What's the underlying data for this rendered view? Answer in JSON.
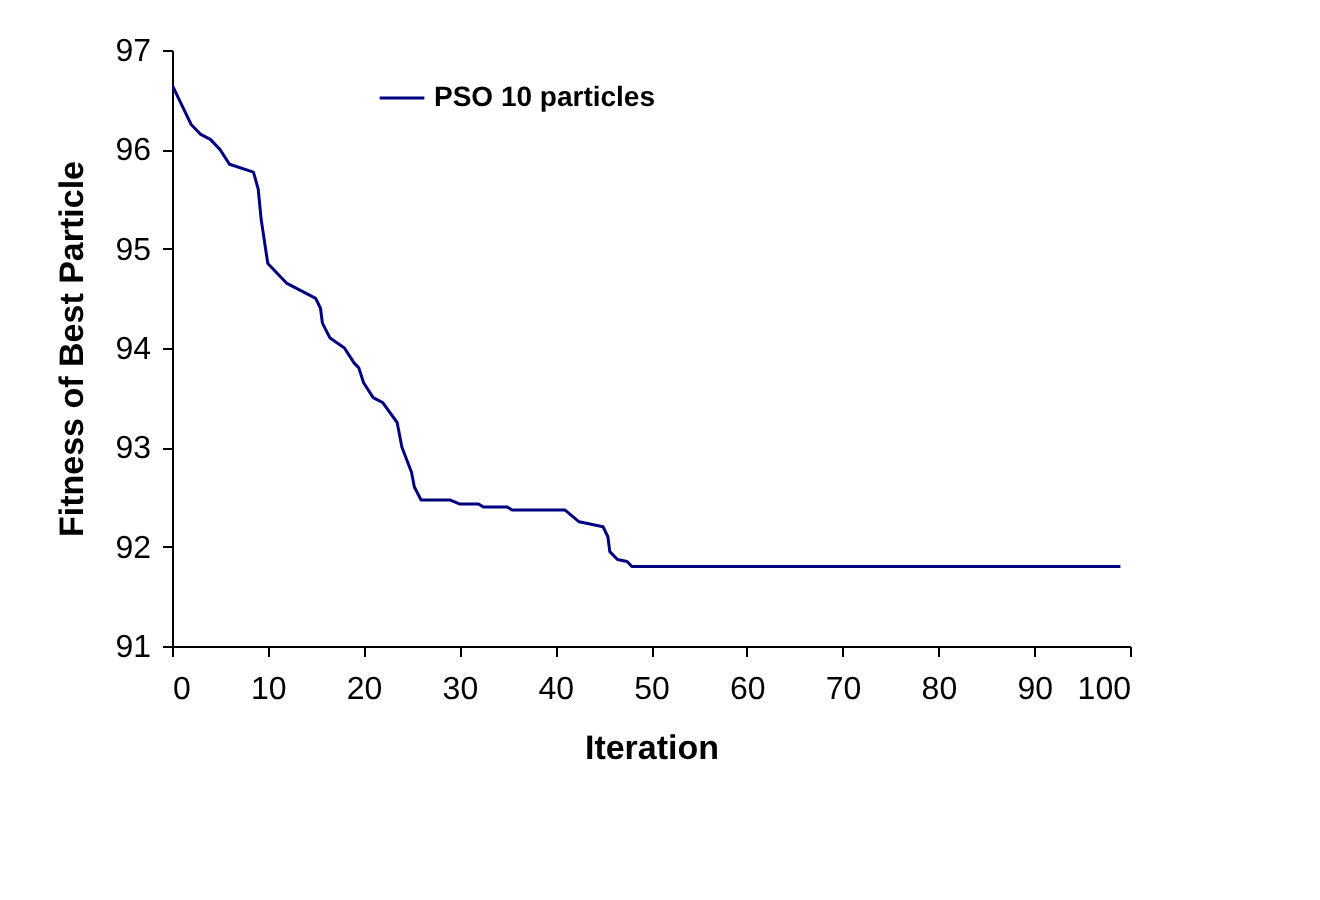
{
  "chart_data": {
    "type": "line",
    "xlabel": "Iteration",
    "ylabel": "Fitness of Best Particle",
    "xlim": [
      0,
      100
    ],
    "xticks": [
      0,
      10,
      20,
      30,
      40,
      50,
      60,
      70,
      80,
      90,
      100
    ],
    "ylim": [
      91,
      97
    ],
    "yticks": [
      91,
      92,
      93,
      94,
      95,
      96,
      97
    ],
    "grid": false,
    "legend": "top left",
    "marker": "none",
    "line_style": "solid",
    "series": [
      {
        "name": "PSO 10 particles",
        "color": "#000080",
        "x": [
          0,
          1,
          2,
          3,
          4,
          5,
          6,
          8.5,
          9,
          9.3,
          10,
          11,
          12,
          13,
          15,
          15.5,
          15.7,
          16.5,
          18,
          19,
          19.5,
          20,
          21,
          22,
          23.5,
          24,
          25,
          25.3,
          26,
          29,
          30,
          32,
          32.5,
          35,
          35.5,
          41,
          42.5,
          44,
          45,
          45.5,
          45.7,
          46.5,
          47.5,
          48,
          99
        ],
        "values": [
          96.65,
          96.45,
          96.25,
          96.15,
          96.1,
          96.0,
          95.85,
          95.77,
          95.6,
          95.3,
          94.85,
          94.75,
          94.65,
          94.6,
          94.5,
          94.4,
          94.25,
          94.1,
          94.0,
          93.85,
          93.8,
          93.65,
          93.5,
          93.45,
          93.25,
          93.0,
          92.75,
          92.6,
          92.47,
          92.47,
          92.43,
          92.43,
          92.4,
          92.4,
          92.37,
          92.37,
          92.25,
          92.22,
          92.2,
          92.1,
          91.95,
          91.87,
          91.85,
          91.8,
          91.8
        ]
      }
    ]
  }
}
